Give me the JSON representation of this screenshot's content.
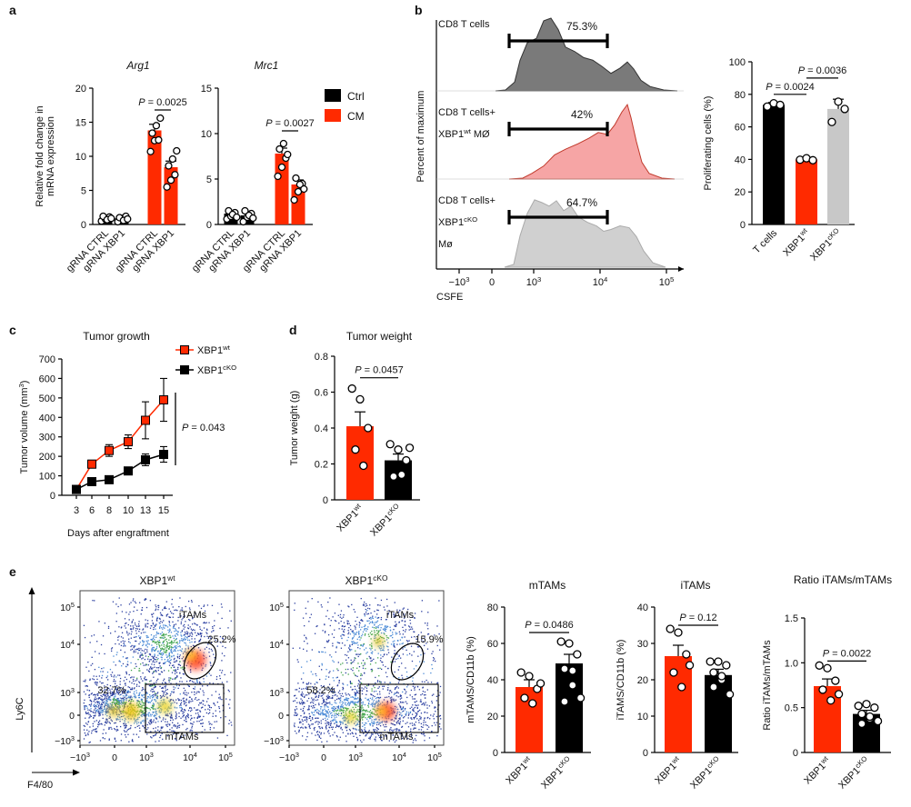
{
  "colors": {
    "ctrl": "#000000",
    "cm": "#ff2a00",
    "red": "#ff2a00",
    "black": "#000000",
    "grey": "#c8c8c8",
    "histGrey": "#7a7a7a",
    "histRed": "#f6a5a5",
    "histLight": "#d0d0d0"
  },
  "panel_labels": {
    "a": "a",
    "b": "b",
    "c": "c",
    "d": "d",
    "e": "e"
  },
  "chart_data": [
    {
      "id": "a1",
      "type": "bar",
      "title": "Arg1",
      "ylabel": "Relative fold change in mRNA expression",
      "ylim": [
        0,
        20
      ],
      "yticks": [
        "0",
        "5",
        "10",
        "15",
        "20"
      ],
      "categories": [
        "gRNA CTRL",
        "gRNA XBP1",
        "gRNA CTRL",
        "gRNA XBP1"
      ],
      "values": [
        0.9,
        0.9,
        13.8,
        8.4
      ],
      "errors": [
        0.3,
        0.3,
        0.9,
        0.9
      ],
      "groups": [
        "ctrl",
        "ctrl",
        "cm",
        "cm"
      ],
      "points": [
        [
          0.5,
          0.8,
          1.1,
          1.2,
          0.7,
          0.9
        ],
        [
          0.4,
          0.9,
          1.2,
          1.0,
          0.6,
          0.8
        ],
        [
          10.7,
          12.3,
          12.4,
          13.4,
          14.5,
          15.6
        ],
        [
          5.5,
          6.5,
          7.3,
          8.6,
          9.6,
          10.8
        ]
      ],
      "annotation": {
        "text": "P = 0.0025",
        "from": 2,
        "to": 3,
        "y": 16.8
      }
    },
    {
      "id": "a2",
      "type": "bar",
      "title": "Mrc1",
      "ylim": [
        0,
        15
      ],
      "yticks": [
        "0",
        "5",
        "10",
        "15"
      ],
      "categories": [
        "gRNA CTRL",
        "gRNA XBP1",
        "gRNA CTRL",
        "gRNA XBP1"
      ],
      "values": [
        1.2,
        1.0,
        7.8,
        4.4
      ],
      "errors": [
        0.3,
        0.3,
        0.6,
        0.5
      ],
      "groups": [
        "ctrl",
        "ctrl",
        "cm",
        "cm"
      ],
      "points": [
        [
          0.6,
          0.9,
          1.3,
          1.5,
          1.1,
          0.8
        ],
        [
          0.3,
          0.8,
          1.2,
          1.5,
          1.0,
          0.7
        ],
        [
          5.3,
          6.3,
          7.3,
          8.3,
          8.9,
          7.7
        ],
        [
          2.7,
          3.6,
          4.5,
          5.1,
          4.4,
          3.9
        ]
      ],
      "annotation": {
        "text": "P = 0.0027",
        "from": 2,
        "to": 3,
        "y": 10.3
      }
    },
    {
      "id": "a_legend",
      "type": "legend",
      "entries": [
        {
          "label": "Ctrl",
          "color": "ctrl"
        },
        {
          "label": "CM",
          "color": "cm"
        }
      ]
    },
    {
      "id": "b_hist",
      "type": "area",
      "ylabel": "Percent of maximum",
      "xlabel": "CSFE",
      "xticks": [
        "−10",
        "0",
        "10",
        "10",
        "10"
      ],
      "xtick_exps": [
        "3",
        "",
        "3",
        "4",
        "5"
      ],
      "tracks": [
        {
          "label_lines": [
            "CD8 T cells"
          ],
          "percent": "75.3%",
          "color": "histGrey"
        },
        {
          "label_lines": [
            "CD8 T cells+",
            "XBP1",
            "MØ"
          ],
          "sup": "wt",
          "percent": "42%",
          "color": "histRed"
        },
        {
          "label_lines": [
            "CD8 T cells+",
            "XBP1",
            "Mø"
          ],
          "sup": "cKO",
          "percent": "64.7%",
          "color": "histLight"
        }
      ]
    },
    {
      "id": "b_bar",
      "type": "bar",
      "ylabel": "Proliferating cells (%)",
      "ylim": [
        0,
        100
      ],
      "yticks": [
        "0",
        "20",
        "40",
        "60",
        "80",
        "100"
      ],
      "categories": [
        "T cells",
        "XBP1",
        "XBP1"
      ],
      "cat_sups": [
        "",
        "wt",
        "cKO"
      ],
      "values": [
        73.5,
        40,
        71
      ],
      "errors": [
        1.5,
        0.6,
        6
      ],
      "colors": [
        "black",
        "red",
        "grey"
      ],
      "points": [
        [
          72.5,
          74.5,
          73.5
        ],
        [
          39.8,
          40.7,
          39.5
        ],
        [
          63,
          75.5,
          71
        ]
      ],
      "annotations": [
        {
          "text": "P = 0.0024",
          "from": 0,
          "to": 1,
          "y": 80
        },
        {
          "text": "P = 0.0036",
          "from": 1,
          "to": 2,
          "y": 90
        }
      ]
    },
    {
      "id": "c",
      "type": "line",
      "title": "Tumor growth",
      "xlabel": "Days after engraftment",
      "ylabel": "Tumor volume (mm",
      "ylabel_sup": "3",
      "ylabel_close": ")",
      "ylim": [
        0,
        700
      ],
      "yticks": [
        "0",
        "100",
        "200",
        "300",
        "400",
        "500",
        "600",
        "700"
      ],
      "x": [
        3,
        6,
        8,
        10,
        13,
        15
      ],
      "xticks": [
        "3",
        "6",
        "8",
        "10",
        "13",
        "15"
      ],
      "series": [
        {
          "name": "XBP1",
          "sup": "wt",
          "values": [
            30,
            160,
            230,
            275,
            385,
            490
          ],
          "errors": [
            15,
            20,
            30,
            35,
            95,
            110
          ],
          "color": "red"
        },
        {
          "name": "XBP1",
          "sup": "cKO",
          "values": [
            30,
            70,
            80,
            125,
            182,
            210
          ],
          "errors": [
            10,
            8,
            10,
            12,
            30,
            40
          ],
          "color": "black"
        }
      ],
      "annotation": "P = 0.043"
    },
    {
      "id": "d",
      "type": "bar",
      "title": "Tumor weight",
      "ylabel": "Tumor weight (g)",
      "ylim": [
        0,
        0.8
      ],
      "yticks": [
        "0",
        "0.2",
        "0.4",
        "0.6",
        "0.8"
      ],
      "categories": [
        "XBP1",
        "XBP1"
      ],
      "cat_sups": [
        "wt",
        "cKO"
      ],
      "values": [
        0.41,
        0.22
      ],
      "errors": [
        0.08,
        0.035
      ],
      "colors": [
        "red",
        "black"
      ],
      "points": [
        [
          0.62,
          0.56,
          0.4,
          0.28,
          0.19
        ],
        [
          0.31,
          0.28,
          0.22,
          0.13,
          0.14,
          0.29
        ]
      ],
      "annotation": {
        "text": "P = 0.0457",
        "from": 0,
        "to": 1,
        "y": 0.68
      }
    },
    {
      "id": "e_flow",
      "type": "scatter",
      "xlabel": "F4/80",
      "ylabel": "Ly6C",
      "xticks": [
        "−10",
        "0",
        "10",
        "10",
        "10"
      ],
      "tick_exps": [
        "3",
        "",
        "3",
        "4",
        "5"
      ],
      "yticks": [
        "10",
        "10",
        "10",
        "0",
        "−10"
      ],
      "ytick_exps": [
        "5",
        "4",
        "3",
        "",
        "3"
      ],
      "plots": [
        {
          "title": "XBP1",
          "sup": "wt",
          "gate_itams_label": "iTAMs",
          "itams_pct": "25.2%",
          "gate_mtams_label": "mTAMs",
          "other_pct": "32.7%"
        },
        {
          "title": "XBP1",
          "sup": "cKO",
          "gate_itams_label": "iTAMs",
          "itams_pct": "15.9%",
          "gate_mtams_label": "mTAMs",
          "other_pct": "58.2%"
        }
      ]
    },
    {
      "id": "e1",
      "type": "bar",
      "title": "mTAMs",
      "ylabel": "mTAMS/CD11b (%)",
      "ylim": [
        0,
        80
      ],
      "yticks": [
        "0",
        "20",
        "40",
        "60",
        "80"
      ],
      "categories": [
        "XBP1",
        "XBP1"
      ],
      "cat_sups": [
        "wt",
        "cKO"
      ],
      "values": [
        36,
        49
      ],
      "errors": [
        4,
        5
      ],
      "colors": [
        "red",
        "black"
      ],
      "points": [
        [
          44,
          42,
          35,
          30,
          27,
          38
        ],
        [
          61,
          60,
          54,
          46,
          37,
          30,
          28,
          45
        ]
      ],
      "annotation": {
        "text": "P = 0.0486",
        "from": 0,
        "to": 1,
        "y": 66
      }
    },
    {
      "id": "e2",
      "type": "bar",
      "title": "iTAMs",
      "ylabel": "iTAMS/CD11b (%)",
      "ylim": [
        0,
        40
      ],
      "yticks": [
        "0",
        "10",
        "20",
        "30",
        "40"
      ],
      "categories": [
        "XBP1",
        "XBP1"
      ],
      "cat_sups": [
        "wt",
        "cKO"
      ],
      "values": [
        26.5,
        21.3
      ],
      "errors": [
        3,
        1.6
      ],
      "colors": [
        "red",
        "black"
      ],
      "points": [
        [
          34,
          33,
          27,
          22,
          18,
          24
        ],
        [
          25,
          25,
          24,
          22,
          20,
          16,
          18,
          21
        ]
      ],
      "annotation": {
        "text": "P = 0.12",
        "from": 0,
        "to": 1,
        "y": 35
      }
    },
    {
      "id": "e3",
      "type": "bar",
      "title": "Ratio iTAMs/mTAMs",
      "ylabel": "Ratio iTAMs/mTAMs",
      "ylim": [
        0,
        1.5
      ],
      "yticks": [
        "0",
        "0.5",
        "1.0",
        "1.5"
      ],
      "categories": [
        "XBP1",
        "XBP1"
      ],
      "cat_sups": [
        "wt",
        "cKO"
      ],
      "values": [
        0.74,
        0.43
      ],
      "errors": [
        0.08,
        0.04
      ],
      "colors": [
        "red",
        "black"
      ],
      "points": [
        [
          0.97,
          0.94,
          0.8,
          0.7,
          0.58,
          0.65
        ],
        [
          0.52,
          0.54,
          0.5,
          0.43,
          0.38,
          0.35,
          0.32,
          0.4
        ]
      ],
      "annotation": {
        "text": "P = 0.0022",
        "from": 0,
        "to": 1,
        "y": 1.02
      }
    }
  ]
}
